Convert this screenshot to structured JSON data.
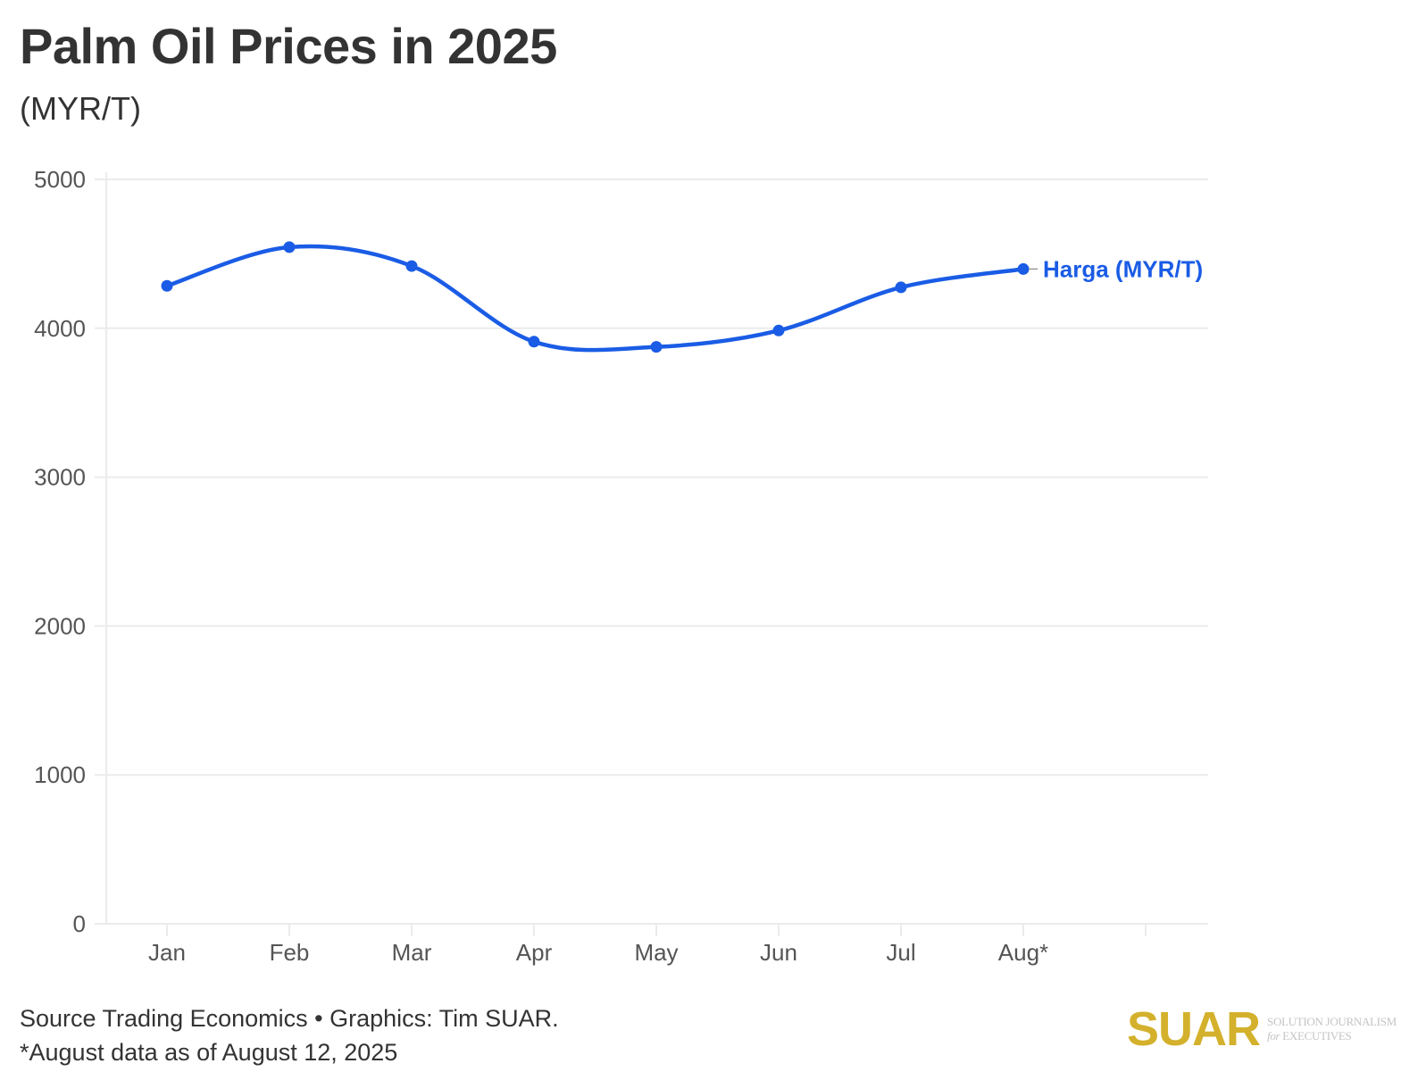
{
  "header": {
    "title": "Palm Oil Prices in 2025",
    "subtitle": "(MYR/T)"
  },
  "footer": {
    "source_line": "Source Trading Economics • Graphics: Tim SUAR.",
    "note_line": "*August data as of August 12, 2025"
  },
  "logo": {
    "wordmark": "SUAR",
    "tagline_top": "SOLUTION JOURNALISM",
    "tagline_for": "for",
    "tagline_bottom": "EXECUTIVES",
    "color": "#d4b12c"
  },
  "colors": {
    "series": "#1a5ce5",
    "grid": "#ebebeb",
    "axis_text": "#555555"
  },
  "chart_data": {
    "type": "line",
    "title": "Palm Oil Prices in 2025",
    "subtitle": "(MYR/T)",
    "xlabel": "",
    "ylabel": "",
    "categories": [
      "Jan",
      "Feb",
      "Mar",
      "Apr",
      "May",
      "Jun",
      "Jul",
      "Aug*",
      ""
    ],
    "series": [
      {
        "name": "Harga (MYR/T)",
        "values": [
          4285,
          4545,
          4418,
          3910,
          3875,
          3985,
          4275,
          4398
        ],
        "color": "#1a5ce5",
        "smooth": true,
        "markers": true,
        "end_label": true
      }
    ],
    "ylim": [
      0,
      5000
    ],
    "yticks": [
      0,
      1000,
      2000,
      3000,
      4000,
      5000
    ],
    "ytick_labels": [
      "0",
      "1000",
      "2000",
      "3000",
      "4000",
      "5000"
    ],
    "grid": true,
    "legend": "inline-end-label"
  }
}
